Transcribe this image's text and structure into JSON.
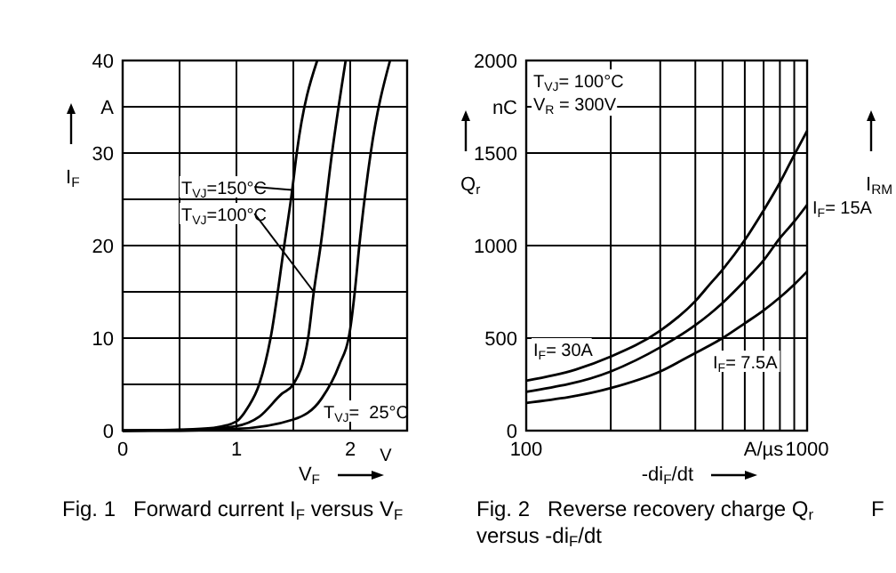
{
  "chart_data": [
    {
      "type": "line",
      "title": "Fig. 1   Forward current I$_{F}$ versus V$_{F}$",
      "xlabel": "V$_{F}$",
      "ylabel": "I$_{F}$",
      "xlim": [
        0,
        2.5
      ],
      "ylim": [
        0,
        40
      ],
      "xticks": [
        0,
        {
          "value": 0.5,
          "label": null
        },
        1,
        {
          "value": 1.5,
          "label": null
        },
        2
      ],
      "yticks": [
        0,
        {
          "value": 5,
          "label": null
        },
        10,
        {
          "value": 15,
          "label": null
        },
        20,
        {
          "value": 25,
          "label": null
        },
        30,
        {
          "value": 35,
          "label": "A"
        },
        40
      ],
      "grid": true,
      "legend": "center",
      "annotations": [
        "V"
      ],
      "series": [
        {
          "name": "T$_{VJ}$=150°C",
          "color": "#000000",
          "x": [
            0,
            0.5,
            0.8,
            1.0,
            1.1,
            1.2,
            1.3,
            1.42,
            1.49,
            1.53,
            1.71
          ],
          "values": [
            0,
            0.1,
            0.3,
            1.0,
            2.5,
            5,
            10,
            20,
            26,
            30,
            40
          ]
        },
        {
          "name": "T$_{VJ}$=100°C",
          "color": "#000000",
          "x": [
            0,
            0.5,
            1.0,
            1.2,
            1.4,
            1.5,
            1.63,
            1.68,
            1.74,
            1.84,
            1.96
          ],
          "values": [
            0,
            0,
            0.5,
            1.5,
            4,
            5,
            10,
            15,
            20,
            30,
            40
          ]
        },
        {
          "name": "T$_{VJ}$=  25°C",
          "color": "#000000",
          "x": [
            0,
            1.0,
            1.5,
            1.75,
            1.9,
            2.0,
            2.04,
            2.08,
            2.18,
            2.35
          ],
          "values": [
            0,
            0.2,
            1.2,
            3.5,
            7,
            11,
            15,
            20,
            30,
            40
          ]
        }
      ]
    },
    {
      "type": "line",
      "title": "Fig. 2   Reverse recovery charge Q$_{r}$ versus -di$_{F}$/dt",
      "xlabel": "-di$_{F}$/dt",
      "ylabel": "Q$_{r}$",
      "log": "x",
      "xlim": [
        100,
        1000
      ],
      "ylim": [
        0,
        2000
      ],
      "xticks": [
        100,
        {
          "value": 200,
          "label": null
        },
        {
          "value": 300,
          "label": null
        },
        {
          "value": 400,
          "label": null
        },
        {
          "value": 500,
          "label": null
        },
        {
          "value": 600,
          "label": null
        },
        {
          "value": 700,
          "label": "A/µs"
        },
        {
          "value": 800,
          "label": null
        },
        {
          "value": 900,
          "label": null
        },
        1000
      ],
      "yticks": [
        0,
        500,
        1000,
        1500,
        {
          "value": 1750,
          "label": "nC"
        },
        2000
      ],
      "grid": true,
      "legend": "bottom right",
      "annotations": [
        "T$_{VJ}$= 100°C",
        "V$_{R}$ = 300V"
      ],
      "series": [
        {
          "name": "I$_{F}$= 30A",
          "color": "#000000",
          "x": [
            100,
            150,
            200,
            300,
            400,
            450,
            500,
            600,
            700,
            800,
            900,
            1000
          ],
          "values": [
            270,
            330,
            400,
            540,
            700,
            790,
            870,
            1030,
            1190,
            1340,
            1490,
            1620
          ]
        },
        {
          "name": "I$_{F}$= 15A",
          "color": "#000000",
          "x": [
            100,
            200,
            300,
            400,
            450,
            500,
            600,
            700,
            800,
            900,
            1000
          ],
          "values": [
            210,
            320,
            450,
            570,
            630,
            690,
            810,
            920,
            1040,
            1130,
            1220
          ]
        },
        {
          "name": "I$_{F}$= 7.5A",
          "color": "#000000",
          "x": [
            100,
            200,
            300,
            400,
            450,
            500,
            600,
            700,
            800,
            900,
            1000
          ],
          "values": [
            150,
            230,
            320,
            420,
            460,
            500,
            580,
            650,
            720,
            790,
            860
          ]
        }
      ]
    },
    {
      "type": "other",
      "title": "F",
      "ylabel": "I$_{RM}$"
    }
  ]
}
